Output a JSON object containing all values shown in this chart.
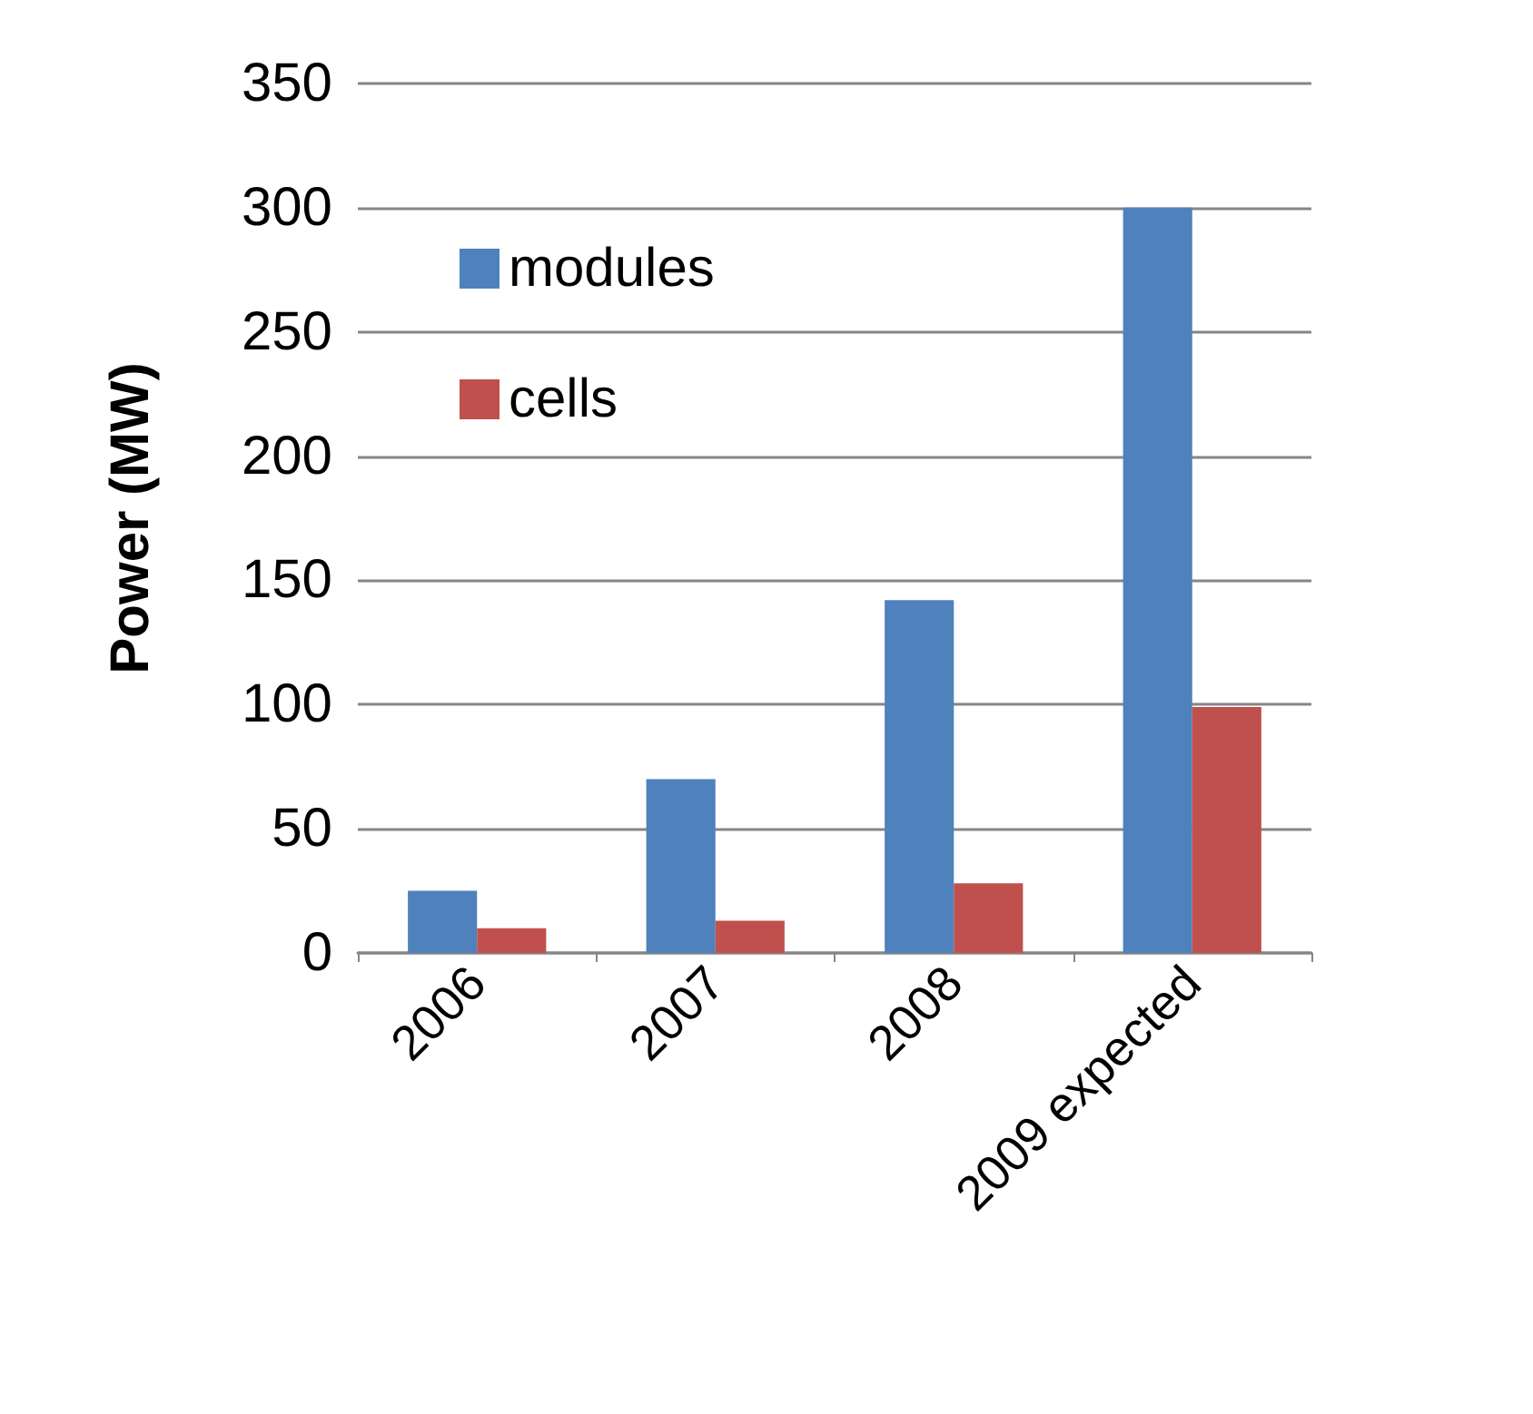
{
  "chart_data": {
    "type": "bar",
    "ylabel": "Power (MW)",
    "categories": [
      "2006",
      "2007",
      "2008",
      "2009 expected"
    ],
    "series": [
      {
        "name": "modules",
        "color": "#4f81bd",
        "values": [
          25,
          70,
          142,
          300
        ]
      },
      {
        "name": "cells",
        "color": "#c0504d",
        "values": [
          10,
          13,
          28,
          99
        ]
      }
    ],
    "ylim": [
      0,
      350
    ],
    "yticks": [
      0,
      50,
      100,
      150,
      200,
      250,
      300,
      350
    ],
    "grid": "y",
    "legend": "top left"
  }
}
